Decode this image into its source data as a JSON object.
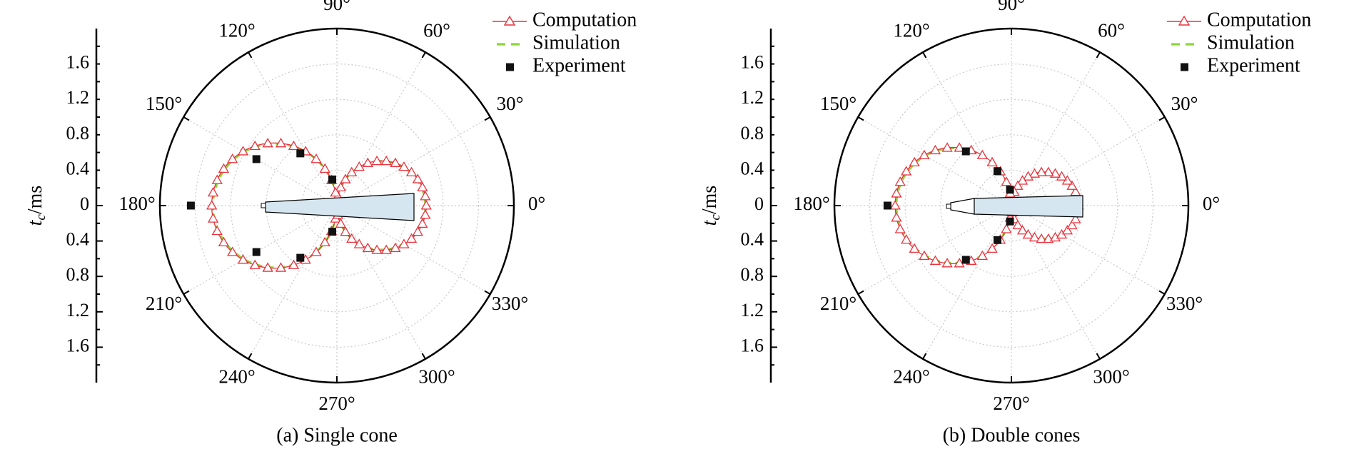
{
  "legend": {
    "computation": "Computation",
    "simulation": "Simulation",
    "experiment": "Experiment"
  },
  "y_axis": {
    "label_main": "t",
    "label_sub": "c",
    "label_unit": "/ms"
  },
  "colors": {
    "computation": "#e8323c",
    "simulation": "#8fd43a",
    "experiment": "#111111",
    "cone_fill": "#d6e6f0",
    "grid": "#c9c9c9"
  },
  "panels": [
    {
      "caption": "(a) Single cone",
      "chart_data": {
        "type": "polar-line",
        "r_axis": {
          "range": [
            0,
            2.0
          ],
          "ticks": [
            0.4,
            0.8,
            1.2,
            1.6
          ],
          "tick_labels_top": [
            "1.6",
            "1.2",
            "0.8",
            "0.4",
            "0"
          ],
          "tick_labels_bottom": [
            "0.4",
            "0.8",
            "1.2",
            "1.6"
          ]
        },
        "angle_ticks": [
          0,
          30,
          60,
          90,
          120,
          150,
          180,
          210,
          240,
          270,
          300,
          330
        ],
        "angle_labels": [
          "0°",
          "30°",
          "60°",
          "90°",
          "120°",
          "150°",
          "180°",
          "210°",
          "240°",
          "270°",
          "300°",
          "330°"
        ],
        "model": {
          "front_lobe_peak": 1.4,
          "front_lobe_sharpness": 1.0,
          "rear_lobe_peak": 1.0,
          "rear_lobe_sharpness": 1.0
        },
        "experiment_points": [
          {
            "theta": 180,
            "r": 1.65
          },
          {
            "theta": 150,
            "r": 1.05
          },
          {
            "theta": 125,
            "r": 0.72
          },
          {
            "theta": 100,
            "r": 0.3
          },
          {
            "theta": 210,
            "r": 1.05
          },
          {
            "theta": 235,
            "r": 0.72
          },
          {
            "theta": 260,
            "r": 0.3
          }
        ],
        "object": "single-cone"
      }
    },
    {
      "caption": "(b) Double cones",
      "chart_data": {
        "type": "polar-line",
        "r_axis": {
          "range": [
            0,
            2.0
          ],
          "ticks": [
            0.4,
            0.8,
            1.2,
            1.6
          ],
          "tick_labels_top": [
            "1.6",
            "1.2",
            "0.8",
            "0.4",
            "0"
          ],
          "tick_labels_bottom": [
            "0.4",
            "0.8",
            "1.2",
            "1.6"
          ]
        },
        "angle_ticks": [
          0,
          30,
          60,
          90,
          120,
          150,
          180,
          210,
          240,
          270,
          300,
          330
        ],
        "angle_labels": [
          "0°",
          "30°",
          "60°",
          "90°",
          "120°",
          "150°",
          "180°",
          "210°",
          "240°",
          "270°",
          "300°",
          "330°"
        ],
        "model": {
          "front_lobe_peak": 1.3,
          "front_lobe_sharpness": 1.0,
          "rear_lobe_peak": 0.75,
          "rear_lobe_sharpness": 1.0
        },
        "experiment_points": [
          {
            "theta": 180,
            "r": 1.4
          },
          {
            "theta": 130,
            "r": 0.8
          },
          {
            "theta": 112,
            "r": 0.42
          },
          {
            "theta": 95,
            "r": 0.18
          },
          {
            "theta": 230,
            "r": 0.8
          },
          {
            "theta": 248,
            "r": 0.42
          },
          {
            "theta": 265,
            "r": 0.18
          }
        ],
        "object": "double-cones"
      }
    }
  ]
}
